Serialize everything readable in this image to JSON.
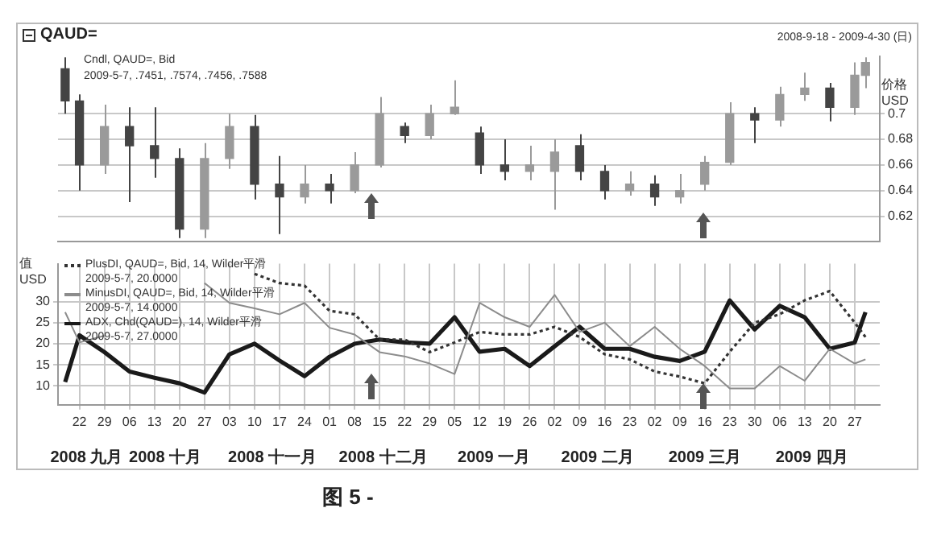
{
  "chart_data": [
    {
      "type": "candlestick",
      "title": "QAUD=",
      "subtitle": "2008-9-18 - 2009-4-30 (日)",
      "ylabel": "价格 USD",
      "annotations": [
        "Cndl, QAUD=, Bid",
        "2009-5-7, .7451, .7574, .7456, .7588"
      ],
      "colors": [
        "#444444",
        "#444444",
        "#9a9a9a",
        "#444444",
        "#444444",
        "#444444",
        "#9a9a9a",
        "#9a9a9a",
        "#444444",
        "#444444",
        "#9a9a9a",
        "#444444",
        "#9a9a9a",
        "#9a9a9a",
        "#444444",
        "#9a9a9a",
        "#9a9a9a",
        "#444444",
        "#444444",
        "#9a9a9a",
        "#9a9a9a",
        "#444444",
        "#444444",
        "#9a9a9a",
        "#444444",
        "#9a9a9a",
        "#9a9a9a",
        "#9a9a9a",
        "#444444",
        "#9a9a9a",
        "#9a9a9a",
        "#444444",
        "#9a9a9a",
        "#9a9a9a"
      ],
      "grid": true,
      "tick_labels": "y",
      "x": [
        "2008-09-18",
        "2008-09-22",
        "2008-09-29",
        "2008-10-06",
        "2008-10-13",
        "2008-10-20",
        "2008-10-27",
        "2008-11-03",
        "2008-11-10",
        "2008-11-17",
        "2008-11-24",
        "2008-12-01",
        "2008-12-08",
        "2008-12-15",
        "2008-12-22",
        "2008-12-29",
        "2009-01-05",
        "2009-01-12",
        "2009-01-19",
        "2009-01-26",
        "2009-02-02",
        "2009-02-09",
        "2009-02-16",
        "2009-02-23",
        "2009-03-02",
        "2009-03-09",
        "2009-03-16",
        "2009-03-23",
        "2009-03-30",
        "2009-04-06",
        "2009-04-13",
        "2009-04-20",
        "2009-04-27",
        "2009-04-30"
      ],
      "ohlc": [
        [
          0.735,
          0.744,
          0.7,
          0.71
        ],
        [
          0.71,
          0.715,
          0.64,
          0.66
        ],
        [
          0.66,
          0.707,
          0.653,
          0.69
        ],
        [
          0.69,
          0.705,
          0.631,
          0.675
        ],
        [
          0.675,
          0.705,
          0.65,
          0.665
        ],
        [
          0.665,
          0.673,
          0.603,
          0.61
        ],
        [
          0.61,
          0.677,
          0.603,
          0.665
        ],
        [
          0.665,
          0.7,
          0.657,
          0.69
        ],
        [
          0.69,
          0.699,
          0.633,
          0.645
        ],
        [
          0.645,
          0.667,
          0.606,
          0.635
        ],
        [
          0.635,
          0.66,
          0.63,
          0.645
        ],
        [
          0.645,
          0.653,
          0.63,
          0.64
        ],
        [
          0.64,
          0.67,
          0.638,
          0.66
        ],
        [
          0.66,
          0.713,
          0.658,
          0.7
        ],
        [
          0.69,
          0.693,
          0.677,
          0.683
        ],
        [
          0.683,
          0.707,
          0.68,
          0.7
        ],
        [
          0.7,
          0.726,
          0.699,
          0.705
        ],
        [
          0.685,
          0.69,
          0.653,
          0.66
        ],
        [
          0.66,
          0.68,
          0.648,
          0.655
        ],
        [
          0.655,
          0.675,
          0.648,
          0.66
        ],
        [
          0.655,
          0.68,
          0.625,
          0.67
        ],
        [
          0.675,
          0.684,
          0.648,
          0.655
        ],
        [
          0.655,
          0.66,
          0.633,
          0.64
        ],
        [
          0.64,
          0.655,
          0.636,
          0.645
        ],
        [
          0.645,
          0.652,
          0.628,
          0.635
        ],
        [
          0.635,
          0.653,
          0.63,
          0.64
        ],
        [
          0.645,
          0.667,
          0.64,
          0.662
        ],
        [
          0.662,
          0.709,
          0.66,
          0.7
        ],
        [
          0.7,
          0.705,
          0.677,
          0.695
        ],
        [
          0.695,
          0.721,
          0.69,
          0.715
        ],
        [
          0.715,
          0.732,
          0.71,
          0.72
        ],
        [
          0.72,
          0.724,
          0.694,
          0.705
        ],
        [
          0.705,
          0.74,
          0.699,
          0.73
        ],
        [
          0.73,
          0.744,
          0.72,
          0.74
        ]
      ],
      "xlim": [
        "2008-09-16",
        "2009-05-04"
      ],
      "ylim": [
        0.6,
        0.745
      ],
      "yticks": [
        0.62,
        0.64,
        0.66,
        0.68,
        0.7
      ]
    },
    {
      "type": "line",
      "ylabel": "值 USD",
      "legend": "top left",
      "grid": true,
      "marker": "none",
      "annotations": [
        "2009-5-7, 20.0000",
        "2009-5-7, 14.0000",
        "2009-5-7, 27.0000",
        "图 5 -"
      ],
      "x": [
        "2008-09-18",
        "2008-09-22",
        "2008-09-29",
        "2008-10-06",
        "2008-10-13",
        "2008-10-20",
        "2008-10-27",
        "2008-11-03",
        "2008-11-10",
        "2008-11-17",
        "2008-11-24",
        "2008-12-01",
        "2008-12-08",
        "2008-12-15",
        "2008-12-22",
        "2008-12-29",
        "2009-01-05",
        "2009-01-12",
        "2009-01-19",
        "2009-01-26",
        "2009-02-02",
        "2009-02-09",
        "2009-02-16",
        "2009-02-23",
        "2009-03-02",
        "2009-03-09",
        "2009-03-16",
        "2009-03-23",
        "2009-03-30",
        "2009-04-06",
        "2009-04-13",
        "2009-04-20",
        "2009-04-27",
        "2009-04-30"
      ],
      "series": [
        {
          "name": "PlusDI, QAUD=, Bid, 14, Wilder平滑",
          "color": "#333333",
          "line_style": "dotted",
          "values": [
            null,
            null,
            null,
            null,
            null,
            null,
            null,
            null,
            36.6,
            34.4,
            33.8,
            27.8,
            27,
            21,
            21,
            18,
            20.3,
            22.8,
            22.2,
            22.2,
            24,
            21.6,
            17.5,
            16.3,
            13.4,
            12.2,
            10.6,
            18.1,
            25,
            27,
            30.3,
            32.5,
            25,
            21.6
          ]
        },
        {
          "name": "MinusDI, QAUD=, Bid, 14, Wilder平滑",
          "color": "#8c8c8c",
          "line_style": "solid",
          "values": [
            27.5,
            20.3,
            21.9,
            null,
            null,
            null,
            34.4,
            29.7,
            28.4,
            27,
            29.7,
            23.8,
            22.2,
            18,
            17,
            15.3,
            12.8,
            29.7,
            26.3,
            24,
            31.6,
            22.8,
            25,
            19.4,
            24,
            18.8,
            14.7,
            9.4,
            9.4,
            14.7,
            11.2,
            18.8,
            15.3,
            16.3
          ]
        },
        {
          "name": "ADX, Chd(QAUD=), 14, Wilder平滑",
          "color": "#1a1a1a",
          "line_style": "solid",
          "values": [
            10.9,
            22,
            18,
            13.4,
            11.9,
            10.6,
            8.4,
            17.5,
            20,
            16,
            12.3,
            16.9,
            20,
            21,
            20.3,
            20,
            26.3,
            18.1,
            18.8,
            14.7,
            19.4,
            24,
            18.8,
            18.8,
            16.9,
            15.9,
            18.1,
            30.3,
            23.4,
            29,
            26.3,
            18.8,
            20.3,
            27.5
          ]
        }
      ],
      "xlim": [
        "2008-09-16",
        "2009-05-04"
      ],
      "xticks": [
        {
          "value": "2008-09-22",
          "label": "22"
        },
        {
          "value": "2008-09-29",
          "label": "29"
        },
        {
          "value": "2008-10-06",
          "label": "06"
        },
        {
          "value": "2008-10-13",
          "label": "13"
        },
        {
          "value": "2008-10-20",
          "label": "20"
        },
        {
          "value": "2008-10-27",
          "label": "27"
        },
        {
          "value": "2008-11-03",
          "label": "03"
        },
        {
          "value": "2008-11-10",
          "label": "10"
        },
        {
          "value": "2008-11-17",
          "label": "17"
        },
        {
          "value": "2008-11-24",
          "label": "24"
        },
        {
          "value": "2008-12-01",
          "label": "01"
        },
        {
          "value": "2008-12-08",
          "label": "08"
        },
        {
          "value": "2008-12-15",
          "label": "15"
        },
        {
          "value": "2008-12-22",
          "label": "22"
        },
        {
          "value": "2008-12-29",
          "label": "29"
        },
        {
          "value": "2009-01-05",
          "label": "05"
        },
        {
          "value": "2009-01-12",
          "label": "12"
        },
        {
          "value": "2009-01-19",
          "label": "19"
        },
        {
          "value": "2009-01-26",
          "label": "26"
        },
        {
          "value": "2009-02-02",
          "label": "02"
        },
        {
          "value": "2009-02-09",
          "label": "09"
        },
        {
          "value": "2009-02-16",
          "label": "16"
        },
        {
          "value": "2009-02-23",
          "label": "23"
        },
        {
          "value": "2009-03-02",
          "label": "02"
        },
        {
          "value": "2009-03-09",
          "label": "09"
        },
        {
          "value": "2009-03-16",
          "label": "16"
        },
        {
          "value": "2009-03-23",
          "label": "23"
        },
        {
          "value": "2009-03-30",
          "label": "30"
        },
        {
          "value": "2009-04-06",
          "label": "06"
        },
        {
          "value": "2009-04-13",
          "label": "13"
        },
        {
          "value": "2009-04-20",
          "label": "20"
        },
        {
          "value": "2009-04-27",
          "label": "27"
        }
      ],
      "x2lim": [
        "2008-09-16",
        "2009-05-04"
      ],
      "x2ticks": [
        {
          "value": "2008-09-24",
          "label": "2008 九月"
        },
        {
          "value": "2008-10-16",
          "label": "2008 十月"
        },
        {
          "value": "2008-11-15",
          "label": "2008 十一月"
        },
        {
          "value": "2008-12-16",
          "label": "2008 十二月"
        },
        {
          "value": "2009-01-16",
          "label": "2009 一月"
        },
        {
          "value": "2009-02-14",
          "label": "2009 二月"
        },
        {
          "value": "2009-03-16",
          "label": "2009 三月"
        },
        {
          "value": "2009-04-15",
          "label": "2009 四月"
        }
      ],
      "ylim": [
        5.5,
        39
      ],
      "yticks": [
        10,
        15,
        20,
        25,
        30
      ]
    }
  ]
}
